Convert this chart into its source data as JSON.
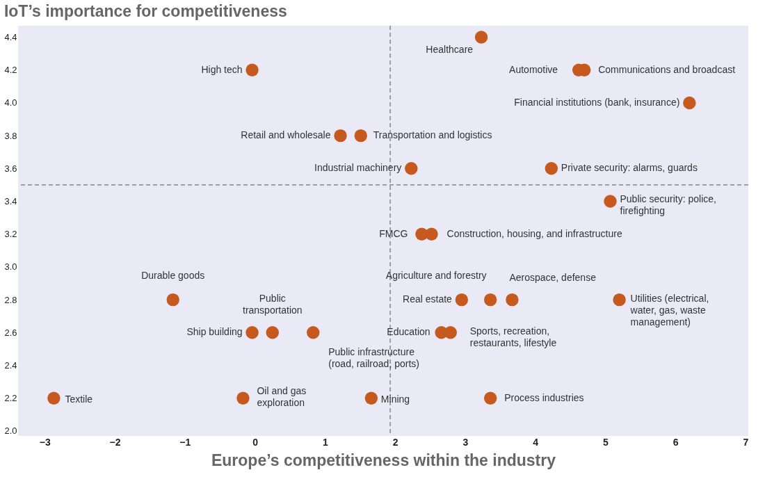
{
  "chart_data": {
    "type": "scatter",
    "title": "IoT’s importance for competitiveness",
    "xlabel": "Europe’s competitiveness within the industry",
    "x": [
      3.23,
      4.62,
      4.7,
      -0.04,
      6.2,
      1.22,
      1.51,
      2.23,
      4.23,
      5.07,
      2.38,
      2.52,
      -1.17,
      2.95,
      3.36,
      3.67,
      5.2,
      -0.04,
      0.25,
      0.83,
      2.66,
      2.79,
      -2.87,
      -0.17,
      1.66,
      3.36
    ],
    "series": [
      {
        "color": "#c65a1e",
        "values": [
          4.4,
          4.2,
          4.2,
          4.2,
          4.0,
          3.8,
          3.8,
          3.6,
          3.6,
          3.4,
          3.2,
          3.2,
          2.8,
          2.8,
          2.8,
          2.8,
          2.8,
          2.6,
          2.6,
          2.6,
          2.6,
          2.6,
          2.2,
          2.2,
          2.2,
          2.2
        ],
        "value_labels": [
          "Healthcare",
          "Automotive",
          "Communications and broadcast",
          "High tech",
          "Financial institutions (bank, insurance)",
          "Retail and wholesale",
          "Transportation and logistics",
          "Industrial machinery",
          "Private security: alarms, guards",
          "Public security: police,\nfirefighting",
          "FMCG",
          "Construction, housing, and infrastructure",
          "Durable goods",
          "Real estate",
          "Agriculture and forestry",
          "Aerospace, defense",
          "Utilities (electrical,\nwater, gas, waste\nmanagement)",
          "Ship building",
          "Public\ntransportation",
          "Public infrastructure\n(road, railroad, ports)",
          "Education",
          "Sports, recreation,\nrestaurants, lifestyle",
          "Textile",
          "Oil and gas\nexploration",
          "Mining",
          "Process industries"
        ]
      }
    ],
    "xlim": [
      -3.38,
      7.04
    ],
    "ylim": [
      1.97,
      4.47
    ],
    "xticks": [
      -3,
      -2,
      -1,
      0,
      1,
      2,
      3,
      4,
      5,
      6,
      7
    ],
    "yticks": [
      {
        "value": 2,
        "label": "2.0"
      },
      2.2,
      2.4,
      2.6,
      2.8,
      {
        "value": 3,
        "label": "3.0"
      },
      3.2,
      3.4,
      3.6,
      3.8,
      {
        "value": 4,
        "label": "4.0"
      },
      4.2,
      4.4
    ],
    "ref_lines": [
      {
        "axis": "x",
        "value": 1.93,
        "color": "#555555",
        "line_style": "dashed"
      },
      {
        "axis": "y",
        "value": 3.5,
        "color": "#555555",
        "line_style": "dashed"
      }
    ],
    "grid": false,
    "marker": "circle"
  }
}
